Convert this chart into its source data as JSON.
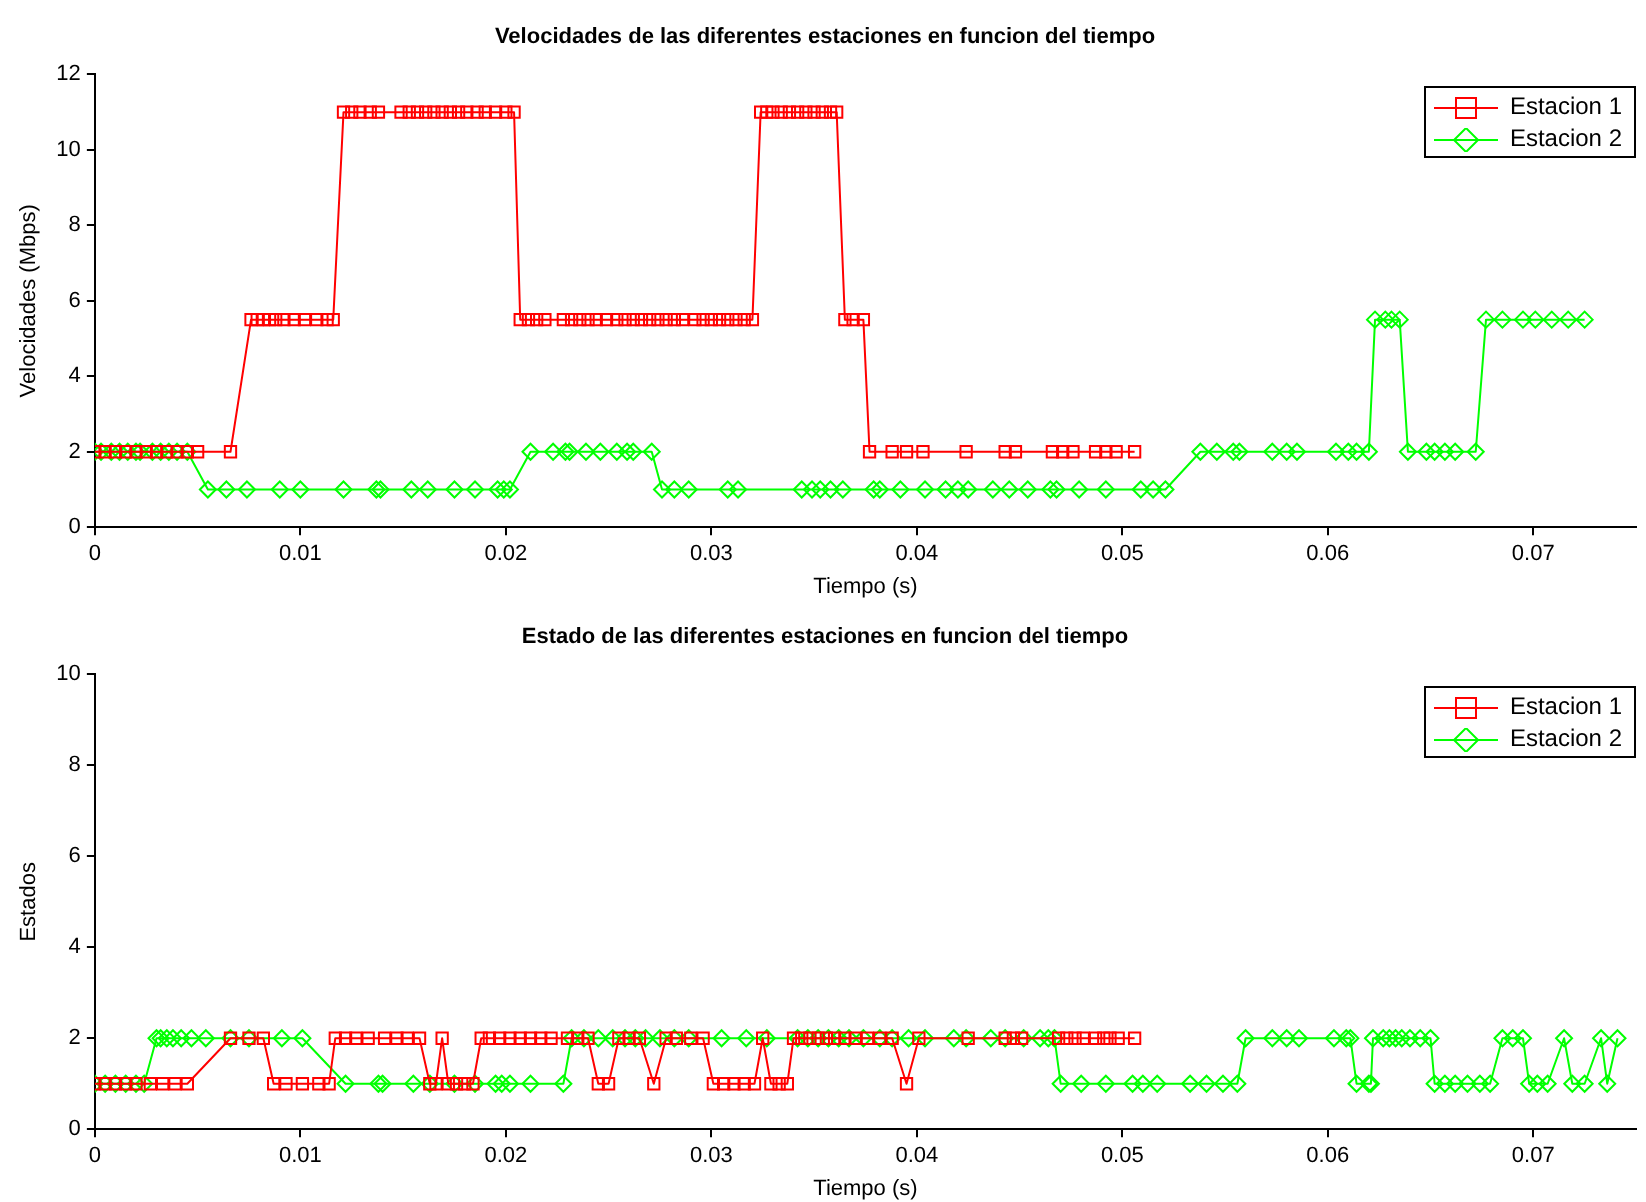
{
  "chart_data": [
    {
      "type": "line",
      "title": "Velocidades de las diferentes estaciones en funcion del tiempo",
      "xlabel": "Tiempo (s)",
      "ylabel": "Velocidades (Mbps)",
      "xlim": [
        0,
        0.075
      ],
      "ylim": [
        0,
        12
      ],
      "xticks": [
        0,
        0.01,
        0.02,
        0.03,
        0.04,
        0.05,
        0.06,
        0.07
      ],
      "yticks": [
        0,
        2,
        4,
        6,
        8,
        10,
        12
      ],
      "grid": false,
      "legend": "top right",
      "line_style": "solid",
      "series": [
        {
          "name": "Estacion 1",
          "color": "#ff0000",
          "marker": "square",
          "x": [
            0,
            0.0005,
            0.001,
            0.0015,
            0.002,
            0.0025,
            0.003,
            0.0035,
            0.004,
            0.0045,
            0.005,
            0.0066,
            0.0076,
            0.0079,
            0.0082,
            0.0085,
            0.0088,
            0.0092,
            0.0097,
            0.0102,
            0.0108,
            0.0113,
            0.0116,
            0.0121,
            0.0125,
            0.0129,
            0.0134,
            0.0138,
            0.0149,
            0.0153,
            0.0157,
            0.0161,
            0.0165,
            0.0169,
            0.0173,
            0.0177,
            0.0181,
            0.0186,
            0.019,
            0.0195,
            0.02,
            0.0204,
            0.0207,
            0.0211,
            0.0215,
            0.0219,
            0.0228,
            0.0232,
            0.0236,
            0.024,
            0.0244,
            0.0249,
            0.0254,
            0.0258,
            0.0262,
            0.0266,
            0.027,
            0.0274,
            0.0278,
            0.0282,
            0.0286,
            0.0292,
            0.0296,
            0.03,
            0.0304,
            0.0308,
            0.0312,
            0.0316,
            0.032,
            0.0324,
            0.0327,
            0.033,
            0.0334,
            0.0338,
            0.0342,
            0.0346,
            0.035,
            0.0354,
            0.0358,
            0.0361,
            0.0365,
            0.0369,
            0.0374,
            0.0377,
            0.0388,
            0.0395,
            0.0403,
            0.0424,
            0.0443,
            0.0448,
            0.0466,
            0.0471,
            0.0476,
            0.0487,
            0.0492,
            0.0497,
            0.0506
          ],
          "values": [
            2,
            2,
            2,
            2,
            2,
            2,
            2,
            2,
            2,
            2,
            2,
            2,
            5.5,
            5.5,
            5.5,
            5.5,
            5.5,
            5.5,
            5.5,
            5.5,
            5.5,
            5.5,
            5.5,
            11,
            11,
            11,
            11,
            11,
            11,
            11,
            11,
            11,
            11,
            11,
            11,
            11,
            11,
            11,
            11,
            11,
            11,
            11,
            5.5,
            5.5,
            5.5,
            5.5,
            5.5,
            5.5,
            5.5,
            5.5,
            5.5,
            5.5,
            5.5,
            5.5,
            5.5,
            5.5,
            5.5,
            5.5,
            5.5,
            5.5,
            5.5,
            5.5,
            5.5,
            5.5,
            5.5,
            5.5,
            5.5,
            5.5,
            5.5,
            11,
            11,
            11,
            11,
            11,
            11,
            11,
            11,
            11,
            11,
            11,
            5.5,
            5.5,
            5.5,
            2,
            2,
            2,
            2,
            2,
            2,
            2,
            2,
            2,
            2,
            2,
            2,
            2,
            2
          ]
        },
        {
          "name": "Estacion 2",
          "color": "#00ff00",
          "marker": "diamond",
          "x": [
            0,
            0.0003,
            0.0008,
            0.0012,
            0.0016,
            0.002,
            0.0022,
            0.0028,
            0.0032,
            0.0036,
            0.004,
            0.0045,
            0.0055,
            0.0064,
            0.0074,
            0.009,
            0.01,
            0.0121,
            0.0137,
            0.0139,
            0.0154,
            0.0162,
            0.0175,
            0.0185,
            0.0196,
            0.0199,
            0.0202,
            0.0212,
            0.0223,
            0.0229,
            0.0231,
            0.0239,
            0.0246,
            0.0254,
            0.0259,
            0.0262,
            0.0271,
            0.0276,
            0.0282,
            0.0289,
            0.0308,
            0.0313,
            0.0344,
            0.0349,
            0.0353,
            0.0358,
            0.0364,
            0.0379,
            0.0382,
            0.0392,
            0.0404,
            0.0414,
            0.042,
            0.0425,
            0.0437,
            0.0445,
            0.0454,
            0.0465,
            0.0468,
            0.0479,
            0.0492,
            0.0509,
            0.0515,
            0.0521,
            0.0538,
            0.0546,
            0.0554,
            0.0557,
            0.0573,
            0.058,
            0.0585,
            0.0604,
            0.061,
            0.0614,
            0.062,
            0.0623,
            0.0628,
            0.0631,
            0.0635,
            0.0639,
            0.0648,
            0.0652,
            0.0657,
            0.0662,
            0.0672,
            0.0677,
            0.0685,
            0.0695,
            0.0701,
            0.0709,
            0.0717,
            0.0725
          ],
          "values": [
            2,
            2,
            2,
            2,
            2,
            2,
            2,
            2,
            2,
            2,
            2,
            2,
            1,
            1,
            1,
            1,
            1,
            1,
            1,
            1,
            1,
            1,
            1,
            1,
            1,
            1,
            1,
            2,
            2,
            2,
            2,
            2,
            2,
            2,
            2,
            2,
            2,
            1,
            1,
            1,
            1,
            1,
            1,
            1,
            1,
            1,
            1,
            1,
            1,
            1,
            1,
            1,
            1,
            1,
            1,
            1,
            1,
            1,
            1,
            1,
            1,
            1,
            1,
            1,
            2,
            2,
            2,
            2,
            2,
            2,
            2,
            2,
            2,
            2,
            2,
            5.5,
            5.5,
            5.5,
            5.5,
            2,
            2,
            2,
            2,
            2,
            2,
            5.5,
            5.5,
            5.5,
            5.5,
            5.5,
            5.5,
            5.5
          ]
        }
      ]
    },
    {
      "type": "line",
      "title": "Estado de las diferentes estaciones en funcion del tiempo",
      "xlabel": "Tiempo (s)",
      "ylabel": "Estados",
      "xlim": [
        0,
        0.075
      ],
      "ylim": [
        0,
        10
      ],
      "xticks": [
        0,
        0.01,
        0.02,
        0.03,
        0.04,
        0.05,
        0.06,
        0.07
      ],
      "yticks": [
        0,
        2,
        4,
        6,
        8,
        10
      ],
      "grid": false,
      "legend": "top right",
      "line_style": "solid",
      "series": [
        {
          "name": "Estacion 1",
          "color": "#ff0000",
          "marker": "square",
          "x": [
            0,
            0.0005,
            0.001,
            0.0015,
            0.002,
            0.0027,
            0.0033,
            0.0039,
            0.0045,
            0.0066,
            0.0075,
            0.0082,
            0.0087,
            0.0093,
            0.0101,
            0.0109,
            0.0114,
            0.0117,
            0.0122,
            0.0127,
            0.0133,
            0.0141,
            0.0147,
            0.0152,
            0.0158,
            0.0163,
            0.0166,
            0.0169,
            0.0172,
            0.0176,
            0.018,
            0.0184,
            0.0188,
            0.0192,
            0.0197,
            0.0202,
            0.0207,
            0.0212,
            0.0217,
            0.0222,
            0.023,
            0.0235,
            0.024,
            0.0245,
            0.025,
            0.0255,
            0.026,
            0.0265,
            0.0272,
            0.0278,
            0.0283,
            0.029,
            0.0296,
            0.0301,
            0.0306,
            0.0311,
            0.0316,
            0.0321,
            0.0325,
            0.0329,
            0.0333,
            0.0337,
            0.034,
            0.0344,
            0.0348,
            0.0352,
            0.0356,
            0.036,
            0.0365,
            0.037,
            0.0376,
            0.0382,
            0.0388,
            0.0395,
            0.0401,
            0.0425,
            0.0443,
            0.0447,
            0.0451,
            0.0469,
            0.0473,
            0.0477,
            0.0481,
            0.0487,
            0.0491,
            0.0494,
            0.0498,
            0.0506
          ],
          "values": [
            1,
            1,
            1,
            1,
            1,
            1,
            1,
            1,
            1,
            2,
            2,
            2,
            1,
            1,
            1,
            1,
            1,
            2,
            2,
            2,
            2,
            2,
            2,
            2,
            2,
            1,
            1,
            2,
            1,
            1,
            1,
            1,
            2,
            2,
            2,
            2,
            2,
            2,
            2,
            2,
            2,
            2,
            2,
            1,
            1,
            2,
            2,
            2,
            1,
            2,
            2,
            2,
            2,
            1,
            1,
            1,
            1,
            1,
            2,
            1,
            1,
            1,
            2,
            2,
            2,
            2,
            2,
            2,
            2,
            2,
            2,
            2,
            2,
            1,
            2,
            2,
            2,
            2,
            2,
            2,
            2,
            2,
            2,
            2,
            2,
            2,
            2,
            2
          ]
        },
        {
          "name": "Estacion 2",
          "color": "#00ff00",
          "marker": "diamond",
          "x": [
            0,
            0.0005,
            0.001,
            0.0015,
            0.002,
            0.0024,
            0.003,
            0.0032,
            0.0035,
            0.0038,
            0.0042,
            0.0047,
            0.0054,
            0.0066,
            0.0075,
            0.0091,
            0.0101,
            0.0122,
            0.0138,
            0.014,
            0.0155,
            0.0163,
            0.0175,
            0.0185,
            0.0195,
            0.0198,
            0.0202,
            0.0212,
            0.0228,
            0.0232,
            0.0238,
            0.0245,
            0.0252,
            0.0258,
            0.0263,
            0.0268,
            0.0275,
            0.0282,
            0.0289,
            0.0305,
            0.0317,
            0.0327,
            0.0342,
            0.0347,
            0.0352,
            0.0357,
            0.0362,
            0.0367,
            0.0374,
            0.0382,
            0.0388,
            0.0396,
            0.0404,
            0.0418,
            0.0424,
            0.0436,
            0.0443,
            0.0452,
            0.046,
            0.0464,
            0.0467,
            0.047,
            0.048,
            0.0492,
            0.0505,
            0.051,
            0.0517,
            0.0533,
            0.0541,
            0.0549,
            0.0556,
            0.056,
            0.0573,
            0.058,
            0.0586,
            0.0603,
            0.0609,
            0.0611,
            0.0614,
            0.062,
            0.0621,
            0.0622,
            0.0627,
            0.063,
            0.0633,
            0.0636,
            0.064,
            0.0645,
            0.065,
            0.0652,
            0.0657,
            0.0662,
            0.0668,
            0.0674,
            0.0679,
            0.0685,
            0.069,
            0.0695,
            0.0698,
            0.0702,
            0.0707,
            0.0715,
            0.0719,
            0.0725,
            0.0733,
            0.0736,
            0.0741
          ],
          "values": [
            1,
            1,
            1,
            1,
            1,
            1,
            2,
            2,
            2,
            2,
            2,
            2,
            2,
            2,
            2,
            2,
            2,
            1,
            1,
            1,
            1,
            1,
            1,
            1,
            1,
            1,
            1,
            1,
            1,
            2,
            2,
            2,
            2,
            2,
            2,
            2,
            2,
            2,
            2,
            2,
            2,
            2,
            2,
            2,
            2,
            2,
            2,
            2,
            2,
            2,
            2,
            2,
            2,
            2,
            2,
            2,
            2,
            2,
            2,
            2,
            2,
            1,
            1,
            1,
            1,
            1,
            1,
            1,
            1,
            1,
            1,
            2,
            2,
            2,
            2,
            2,
            2,
            2,
            1,
            1,
            1,
            2,
            2,
            2,
            2,
            2,
            2,
            2,
            2,
            1,
            1,
            1,
            1,
            1,
            1,
            2,
            2,
            2,
            1,
            1,
            1,
            2,
            1,
            1,
            2,
            1,
            2
          ]
        }
      ]
    }
  ]
}
